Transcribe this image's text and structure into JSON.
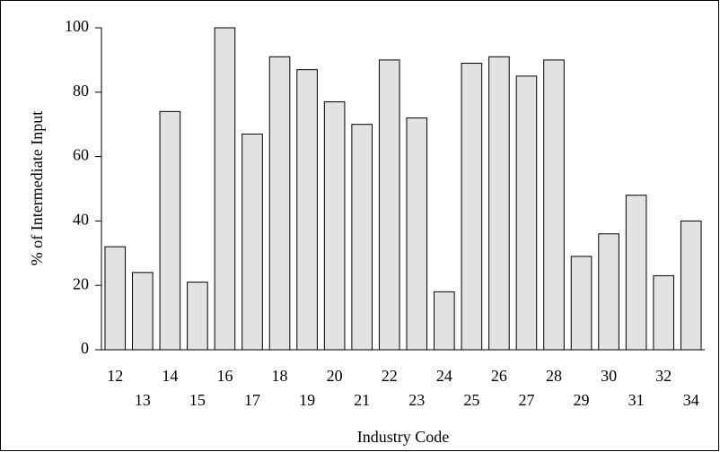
{
  "chart_data": {
    "type": "bar",
    "xlabel": "Industry Code",
    "ylabel": "% of Intermediate Input",
    "categories": [
      "12",
      "13",
      "14",
      "15",
      "16",
      "17",
      "18",
      "19",
      "20",
      "21",
      "22",
      "23",
      "24",
      "25",
      "26",
      "27",
      "28",
      "29",
      "30",
      "31",
      "32",
      "34"
    ],
    "values": [
      32,
      24,
      74,
      21,
      100,
      67,
      91,
      87,
      77,
      70,
      90,
      72,
      18,
      89,
      91,
      85,
      90,
      29,
      36,
      48,
      23,
      40
    ],
    "color": "#e2e2e2",
    "ylim": [
      0,
      100
    ],
    "yticks": [
      0,
      20,
      40,
      60,
      80,
      100
    ],
    "grid": false
  }
}
